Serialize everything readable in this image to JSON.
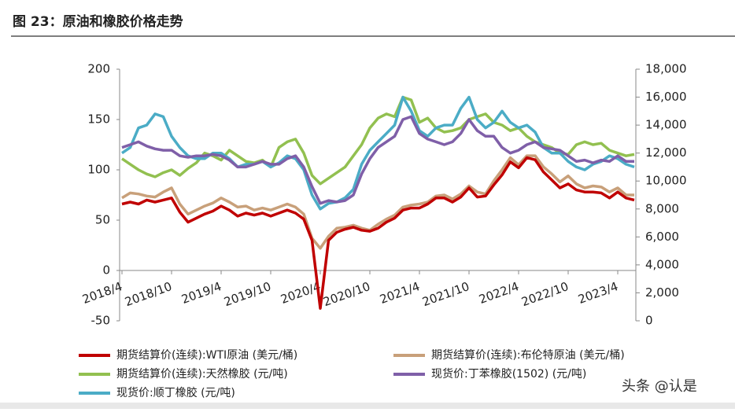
{
  "chart_data": {
    "type": "line",
    "title": "图 23：原油和橡胶价格走势",
    "x": [
      "2018/4",
      "2018/5",
      "2018/6",
      "2018/7",
      "2018/8",
      "2018/9",
      "2018/10",
      "2018/11",
      "2018/12",
      "2019/1",
      "2019/2",
      "2019/3",
      "2019/4",
      "2019/5",
      "2019/6",
      "2019/7",
      "2019/8",
      "2019/9",
      "2019/10",
      "2019/11",
      "2019/12",
      "2020/1",
      "2020/2",
      "2020/3",
      "2020/4",
      "2020/5",
      "2020/6",
      "2020/7",
      "2020/8",
      "2020/9",
      "2020/10",
      "2020/11",
      "2020/12",
      "2021/1",
      "2021/2",
      "2021/3",
      "2021/4",
      "2021/5",
      "2021/6",
      "2021/7",
      "2021/8",
      "2021/9",
      "2021/10",
      "2021/11",
      "2021/12",
      "2022/1",
      "2022/2",
      "2022/3",
      "2022/4",
      "2022/5",
      "2022/6",
      "2022/7",
      "2022/8",
      "2022/9",
      "2022/10",
      "2022/11",
      "2022/12",
      "2023/1",
      "2023/2",
      "2023/3",
      "2023/4",
      "2023/5",
      "2023/6"
    ],
    "xticks": [
      "2018/4",
      "2018/10",
      "2019/4",
      "2019/10",
      "2020/4",
      "2020/10",
      "2021/4",
      "2021/10",
      "2022/4",
      "2022/10",
      "2023/4"
    ],
    "ylim": [
      -50,
      200
    ],
    "yticks": [
      -50,
      0,
      50,
      100,
      150,
      200
    ],
    "y2lim": [
      0,
      18000
    ],
    "y2ticks": [
      0,
      {
        "value": 2000,
        "label": "2,000"
      },
      {
        "value": 4000,
        "label": "4,000"
      },
      {
        "value": 6000,
        "label": "6,000"
      },
      {
        "value": 8000,
        "label": "8,000"
      },
      {
        "value": 10000,
        "label": "10,000"
      },
      {
        "value": 12000,
        "label": "12,000"
      },
      {
        "value": 14000,
        "label": "14,000"
      },
      {
        "value": 16000,
        "label": "16,000"
      },
      {
        "value": 18000,
        "label": "18,000"
      }
    ],
    "series": [
      {
        "name": "期货结算价(连续):WTI原油 (美元/桶)",
        "color": "#c00000",
        "values": [
          66,
          68,
          66,
          70,
          68,
          70,
          72,
          58,
          48,
          52,
          56,
          59,
          64,
          60,
          54,
          57,
          55,
          57,
          54,
          57,
          60,
          57,
          51,
          30,
          -37.63,
          30,
          38,
          41,
          43,
          40,
          39,
          42,
          48,
          52,
          60,
          62,
          62,
          66,
          72,
          72,
          68,
          73,
          82,
          73,
          74,
          85,
          95,
          108,
          102,
          112,
          110,
          98,
          90,
          82,
          86,
          80,
          78,
          78,
          77,
          72,
          78,
          72,
          70
        ]
      },
      {
        "name": "期货结算价(连续):布伦特原油 (美元/桶)",
        "color": "#c8a07a",
        "values": [
          72,
          77,
          76,
          74,
          73,
          78,
          82,
          66,
          56,
          60,
          64,
          67,
          72,
          68,
          63,
          64,
          60,
          62,
          60,
          63,
          66,
          63,
          56,
          32,
          22,
          34,
          42,
          43,
          45,
          42,
          40,
          46,
          51,
          55,
          63,
          65,
          66,
          68,
          74,
          75,
          71,
          76,
          84,
          78,
          76,
          89,
          100,
          112,
          105,
          114,
          114,
          103,
          96,
          88,
          94,
          86,
          82,
          84,
          83,
          78,
          82,
          75,
          75
        ]
      },
      {
        "name": "期货结算价(连续):天然橡胶 (元/吨)",
        "color": "#92c050",
        "axis": "y2",
        "values": [
          11600,
          11200,
          10800,
          10500,
          10300,
          10600,
          10800,
          10400,
          10900,
          11300,
          12000,
          11800,
          11500,
          12200,
          11800,
          11400,
          11300,
          11500,
          11000,
          12400,
          12800,
          13000,
          12000,
          10400,
          9800,
          10200,
          10600,
          11000,
          11800,
          12600,
          13800,
          14500,
          14800,
          14600,
          16000,
          15800,
          14200,
          14500,
          13800,
          13500,
          13600,
          13800,
          14400,
          14600,
          14800,
          14200,
          14000,
          13600,
          13800,
          13200,
          12800,
          12600,
          12400,
          12000,
          11900,
          12600,
          12800,
          12600,
          12700,
          12200,
          12000,
          11800,
          11900
        ]
      },
      {
        "name": "现货价:丁苯橡胶(1502) (元/吨)",
        "color": "#7f5fa8",
        "axis": "y2",
        "values": [
          12400,
          12600,
          12800,
          12500,
          12300,
          12200,
          12200,
          11800,
          11700,
          11800,
          11800,
          11900,
          11800,
          11500,
          11000,
          11000,
          11200,
          11400,
          11200,
          11200,
          11600,
          11800,
          11000,
          9600,
          8400,
          8600,
          8500,
          8600,
          9000,
          10500,
          11600,
          12400,
          12800,
          13200,
          14400,
          14600,
          13400,
          13000,
          12800,
          12600,
          12800,
          13400,
          14400,
          13600,
          13200,
          13200,
          12400,
          12000,
          12200,
          12600,
          12800,
          12400,
          12300,
          12200,
          11800,
          11400,
          11500,
          11300,
          11500,
          11400,
          11800,
          11400,
          11400
        ]
      },
      {
        "name": "现货价:顺丁橡胶 (元/吨)",
        "color": "#4bacc6",
        "axis": "y2",
        "values": [
          12000,
          12400,
          13800,
          14000,
          14800,
          14600,
          13200,
          12400,
          11800,
          11600,
          11600,
          12000,
          12000,
          11600,
          11000,
          11200,
          11200,
          11400,
          11000,
          11300,
          11800,
          11600,
          10800,
          9000,
          8000,
          8400,
          8500,
          8800,
          9400,
          11200,
          12200,
          12800,
          13400,
          14000,
          16000,
          15000,
          13600,
          13200,
          13800,
          14000,
          14000,
          15200,
          16000,
          14400,
          13800,
          14200,
          15000,
          14200,
          13800,
          14000,
          13500,
          12400,
          12000,
          12000,
          11400,
          11000,
          10800,
          11200,
          11400,
          11800,
          11600,
          11200,
          11000
        ]
      }
    ],
    "annotation": "头条 @认是"
  }
}
